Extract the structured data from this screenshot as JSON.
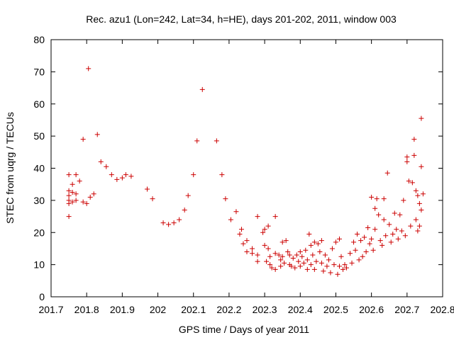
{
  "chart_data": {
    "type": "scatter",
    "title": "Rec. azu1 (Lon=242, Lat=34, h=HE), days 201-202, 2011, window 003",
    "xlabel": "GPS time / Days of year 2011",
    "ylabel": "STEC from uqrg / TECUs",
    "xlim": [
      201.7,
      202.8
    ],
    "ylim": [
      0,
      80
    ],
    "x_ticks": [
      "201.7",
      "201.8",
      "201.9",
      "202",
      "202.1",
      "202.2",
      "202.3",
      "202.4",
      "202.5",
      "202.6",
      "202.7",
      "202.8"
    ],
    "y_ticks": [
      "0",
      "10",
      "20",
      "30",
      "40",
      "50",
      "60",
      "70",
      "80"
    ],
    "grid": false,
    "legend": "none",
    "marker": "+",
    "color": "#cc0000",
    "points": [
      [
        201.75,
        38
      ],
      [
        201.75,
        33
      ],
      [
        201.75,
        31.5
      ],
      [
        201.75,
        30
      ],
      [
        201.75,
        29
      ],
      [
        201.75,
        25
      ],
      [
        201.76,
        35
      ],
      [
        201.76,
        32.5
      ],
      [
        201.76,
        29.5
      ],
      [
        201.77,
        38
      ],
      [
        201.77,
        32
      ],
      [
        201.77,
        30
      ],
      [
        201.78,
        36
      ],
      [
        201.79,
        49
      ],
      [
        201.79,
        29.5
      ],
      [
        201.8,
        29
      ],
      [
        201.805,
        71
      ],
      [
        201.81,
        31
      ],
      [
        201.82,
        32
      ],
      [
        201.83,
        50.5
      ],
      [
        201.84,
        42
      ],
      [
        201.855,
        40.5
      ],
      [
        201.87,
        38
      ],
      [
        201.885,
        36.5
      ],
      [
        201.9,
        37
      ],
      [
        201.91,
        38
      ],
      [
        201.925,
        37.5
      ],
      [
        201.97,
        33.5
      ],
      [
        201.985,
        30.5
      ],
      [
        202.015,
        23
      ],
      [
        202.03,
        22.5
      ],
      [
        202.045,
        23
      ],
      [
        202.06,
        24
      ],
      [
        202.075,
        27
      ],
      [
        202.085,
        31.5
      ],
      [
        202.1,
        38
      ],
      [
        202.11,
        48.5
      ],
      [
        202.125,
        64.5
      ],
      [
        202.165,
        48.5
      ],
      [
        202.18,
        38
      ],
      [
        202.19,
        30.5
      ],
      [
        202.205,
        24
      ],
      [
        202.22,
        26.5
      ],
      [
        202.235,
        21
      ],
      [
        202.23,
        19.5
      ],
      [
        202.24,
        16.5
      ],
      [
        202.25,
        17.5
      ],
      [
        202.25,
        14
      ],
      [
        202.265,
        15
      ],
      [
        202.265,
        13.5
      ],
      [
        202.28,
        25
      ],
      [
        202.28,
        13
      ],
      [
        202.28,
        11
      ],
      [
        202.295,
        20
      ],
      [
        202.3,
        21
      ],
      [
        202.3,
        16
      ],
      [
        202.305,
        11
      ],
      [
        202.31,
        22
      ],
      [
        202.31,
        15
      ],
      [
        202.315,
        12.5
      ],
      [
        202.315,
        10
      ],
      [
        202.32,
        9
      ],
      [
        202.33,
        25
      ],
      [
        202.33,
        13.5
      ],
      [
        202.33,
        8.5
      ],
      [
        202.34,
        13
      ],
      [
        202.345,
        11.5
      ],
      [
        202.345,
        9.5
      ],
      [
        202.35,
        17
      ],
      [
        202.35,
        12.5
      ],
      [
        202.355,
        10.5
      ],
      [
        202.36,
        17.5
      ],
      [
        202.365,
        14
      ],
      [
        202.37,
        13
      ],
      [
        202.37,
        10
      ],
      [
        202.375,
        9.5
      ],
      [
        202.38,
        12
      ],
      [
        202.385,
        9
      ],
      [
        202.39,
        13
      ],
      [
        202.395,
        11
      ],
      [
        202.4,
        14
      ],
      [
        202.4,
        9.5
      ],
      [
        202.405,
        12.5
      ],
      [
        202.41,
        10.5
      ],
      [
        202.415,
        14.5
      ],
      [
        202.42,
        11.5
      ],
      [
        202.42,
        8.5
      ],
      [
        202.425,
        19.5
      ],
      [
        202.43,
        16
      ],
      [
        202.43,
        10
      ],
      [
        202.435,
        13
      ],
      [
        202.44,
        17
      ],
      [
        202.44,
        8.5
      ],
      [
        202.445,
        11
      ],
      [
        202.45,
        16.5
      ],
      [
        202.455,
        14
      ],
      [
        202.46,
        17.5
      ],
      [
        202.46,
        10.5
      ],
      [
        202.465,
        8
      ],
      [
        202.47,
        13
      ],
      [
        202.475,
        9.5
      ],
      [
        202.48,
        11.5
      ],
      [
        202.485,
        7.5
      ],
      [
        202.49,
        15
      ],
      [
        202.495,
        10
      ],
      [
        202.5,
        17
      ],
      [
        202.505,
        7
      ],
      [
        202.51,
        18
      ],
      [
        202.51,
        9.5
      ],
      [
        202.515,
        12.5
      ],
      [
        202.52,
        8.5
      ],
      [
        202.525,
        10
      ],
      [
        202.53,
        9
      ],
      [
        202.54,
        13.5
      ],
      [
        202.545,
        10.5
      ],
      [
        202.55,
        17
      ],
      [
        202.555,
        14.5
      ],
      [
        202.56,
        19.5
      ],
      [
        202.565,
        11.5
      ],
      [
        202.57,
        17.5
      ],
      [
        202.575,
        12.5
      ],
      [
        202.58,
        18.5
      ],
      [
        202.585,
        14
      ],
      [
        202.59,
        21.5
      ],
      [
        202.595,
        16.5
      ],
      [
        202.6,
        31
      ],
      [
        202.6,
        18
      ],
      [
        202.605,
        14.5
      ],
      [
        202.61,
        27.5
      ],
      [
        202.61,
        21
      ],
      [
        202.615,
        30.5
      ],
      [
        202.62,
        25.5
      ],
      [
        202.625,
        17.5
      ],
      [
        202.63,
        16
      ],
      [
        202.635,
        24
      ],
      [
        202.635,
        30.5
      ],
      [
        202.64,
        19
      ],
      [
        202.645,
        38.5
      ],
      [
        202.65,
        22.5
      ],
      [
        202.655,
        17
      ],
      [
        202.66,
        19.5
      ],
      [
        202.665,
        26
      ],
      [
        202.67,
        21
      ],
      [
        202.675,
        18
      ],
      [
        202.68,
        25.5
      ],
      [
        202.685,
        20.5
      ],
      [
        202.69,
        30
      ],
      [
        202.695,
        19
      ],
      [
        202.7,
        42
      ],
      [
        202.7,
        43.5
      ],
      [
        202.705,
        36
      ],
      [
        202.71,
        22
      ],
      [
        202.715,
        35.5
      ],
      [
        202.72,
        49
      ],
      [
        202.72,
        44
      ],
      [
        202.725,
        33
      ],
      [
        202.725,
        24
      ],
      [
        202.73,
        31.5
      ],
      [
        202.73,
        20.5
      ],
      [
        202.735,
        29
      ],
      [
        202.735,
        22
      ],
      [
        202.74,
        55.5
      ],
      [
        202.74,
        40.5
      ],
      [
        202.74,
        27
      ],
      [
        202.745,
        32
      ]
    ]
  }
}
